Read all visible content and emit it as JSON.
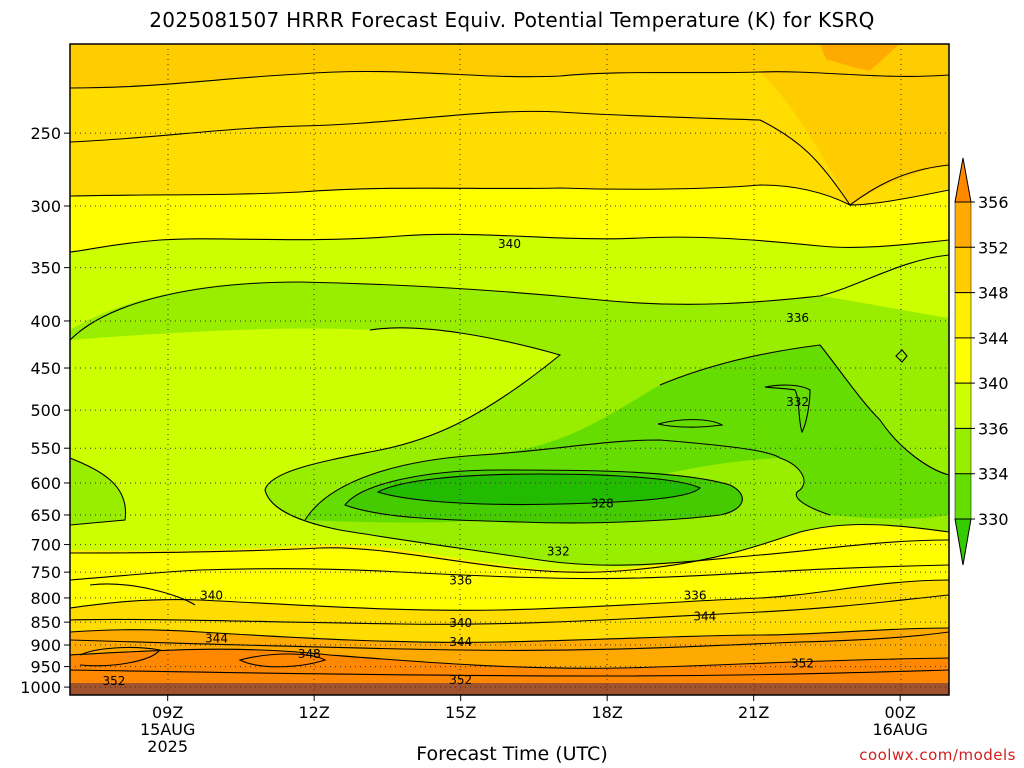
{
  "title": "2025081507 HRRR Forecast Equiv. Potential Temperature (K) for KSRQ",
  "xlabel": "Forecast Time (UTC)",
  "credit": "coolwx.com/models",
  "chart_data": {
    "type": "contour",
    "x_ticks": [
      {
        "lines": [
          "09Z",
          "15AUG",
          "2025"
        ]
      },
      {
        "lines": [
          "12Z"
        ]
      },
      {
        "lines": [
          "15Z"
        ]
      },
      {
        "lines": [
          "18Z"
        ]
      },
      {
        "lines": [
          "21Z"
        ]
      },
      {
        "lines": [
          "00Z",
          "16AUG"
        ]
      }
    ],
    "x_tick_hours": [
      9,
      12,
      15,
      18,
      21,
      24
    ],
    "xlim_hours": [
      7,
      25
    ],
    "y_ticks": [
      250,
      300,
      350,
      400,
      450,
      500,
      550,
      600,
      650,
      700,
      750,
      800,
      850,
      900,
      950,
      1000
    ],
    "ylim_hpa": [
      200,
      1020
    ],
    "colorbar": {
      "levels": [
        330,
        334,
        336,
        340,
        344,
        348,
        352,
        356
      ],
      "labels": [
        "356",
        "352",
        "348",
        "344",
        "340",
        "336",
        "334",
        "330"
      ],
      "colors": [
        "#33cc00",
        "#66dd00",
        "#99ee00",
        "#ccff00",
        "#ffff00",
        "#ffee00",
        "#ffcc00",
        "#ffaa00",
        "#ff8800"
      ]
    },
    "contour_labels": [
      {
        "text": "340",
        "hour": 16.0,
        "p": 330
      },
      {
        "text": "336",
        "hour": 21.9,
        "p": 397
      },
      {
        "text": "332",
        "hour": 21.9,
        "p": 490
      },
      {
        "text": "328",
        "hour": 17.9,
        "p": 632
      },
      {
        "text": "332",
        "hour": 17.0,
        "p": 712
      },
      {
        "text": "336",
        "hour": 15.0,
        "p": 766
      },
      {
        "text": "336",
        "hour": 19.8,
        "p": 795
      },
      {
        "text": "340",
        "hour": 9.9,
        "p": 795
      },
      {
        "text": "340",
        "hour": 15.0,
        "p": 852
      },
      {
        "text": "344",
        "hour": 20.0,
        "p": 838
      },
      {
        "text": "344",
        "hour": 15.0,
        "p": 893
      },
      {
        "text": "344",
        "hour": 10.0,
        "p": 885
      },
      {
        "text": "348",
        "hour": 11.9,
        "p": 920
      },
      {
        "text": "352",
        "hour": 7.9,
        "p": 985
      },
      {
        "text": "352",
        "hour": 15.0,
        "p": 982
      },
      {
        "text": "352",
        "hour": 22.0,
        "p": 943
      }
    ],
    "grid": true,
    "surface_fill": "brown below 1000 hPa"
  }
}
